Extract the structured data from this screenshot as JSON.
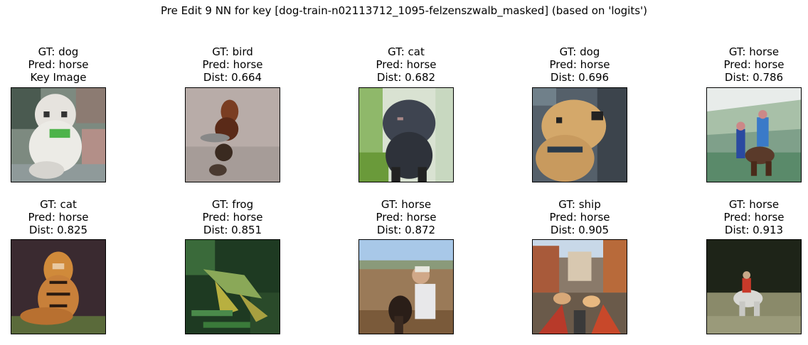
{
  "figure": {
    "title": "Pre Edit 9 NN for key [dog-train-n02113712_1095-felzenszwalb_masked] (based on 'logits')"
  },
  "panels": [
    {
      "gt": "GT: dog",
      "pred": "Pred: horse",
      "extra": "Key Image",
      "image": "white-poodle-green-collar"
    },
    {
      "gt": "GT: bird",
      "pred": "Pred: horse",
      "extra": "Dist: 0.664",
      "image": "brown-bird-on-water"
    },
    {
      "gt": "GT: cat",
      "pred": "Pred: horse",
      "extra": "Dist: 0.682",
      "image": "dark-cat-among-leaves"
    },
    {
      "gt": "GT: dog",
      "pred": "Pred: horse",
      "extra": "Dist: 0.696",
      "image": "tan-dog-face"
    },
    {
      "gt": "GT: horse",
      "pred": "Pred: horse",
      "extra": "Dist: 0.786",
      "image": "riders-in-field"
    },
    {
      "gt": "GT: cat",
      "pred": "Pred: horse",
      "extra": "Dist: 0.825",
      "image": "tiger-lying"
    },
    {
      "gt": "GT: frog",
      "pred": "Pred: horse",
      "extra": "Dist: 0.851",
      "image": "frog-on-grass"
    },
    {
      "gt": "GT: horse",
      "pred": "Pred: horse",
      "extra": "Dist: 0.872",
      "image": "person-with-horse-on-dirt"
    },
    {
      "gt": "GT: ship",
      "pred": "Pred: horse",
      "extra": "Dist: 0.905",
      "image": "boats-on-canal"
    },
    {
      "gt": "GT: horse",
      "pred": "Pred: horse",
      "extra": "Dist: 0.913",
      "image": "rider-on-white-horse"
    }
  ]
}
